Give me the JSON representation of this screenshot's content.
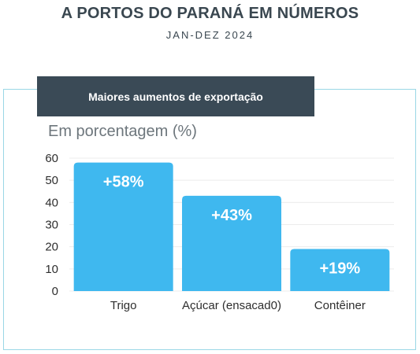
{
  "header": {
    "title": "A PORTOS DO PARANÁ EM NÚMEROS",
    "subtitle": "JAN-DEZ 2024"
  },
  "banner": {
    "label": "Maiores aumentos de exportação"
  },
  "chart_data": {
    "type": "bar",
    "title": "Maiores aumentos de exportação",
    "ylabel": "Em porcentagem (%)",
    "xlabel": "",
    "categories": [
      "Trigo",
      "Açúcar (ensacad0)",
      "Contêiner"
    ],
    "values": [
      58,
      43,
      19
    ],
    "data_labels": [
      "+58%",
      "+43%",
      "+19%"
    ],
    "ylim": [
      0,
      60
    ],
    "yticks": [
      0,
      10,
      20,
      30,
      40,
      50,
      60
    ],
    "grid": true,
    "bar_color": "#3fb8ef",
    "legend": "none"
  }
}
